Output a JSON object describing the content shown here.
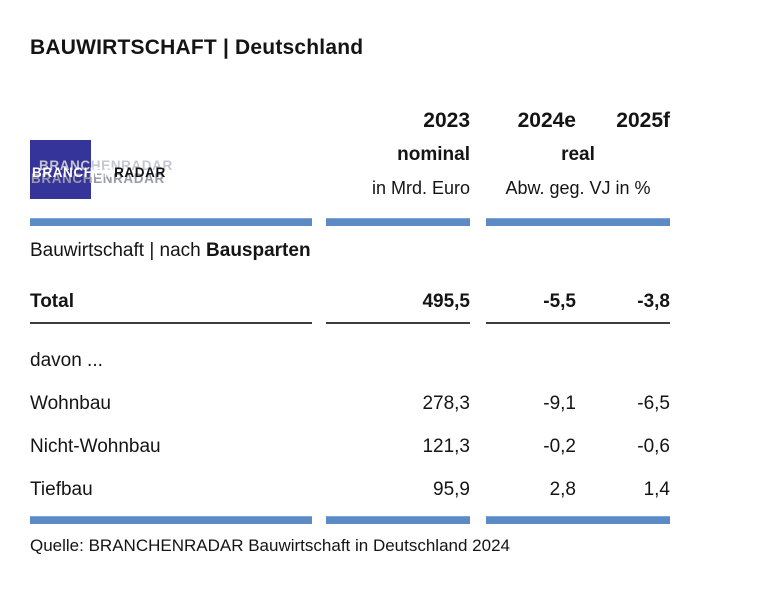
{
  "title": "BAUWIRTSCHAFT | Deutschland",
  "logo": {
    "part1": "BRANCHEN",
    "part2": "RADAR",
    "ghost_text": "BRANCHENRADAR"
  },
  "header": {
    "year_2023": "2023",
    "year_2024": "2024e",
    "year_2025": "2025f",
    "scale_2023": "nominal",
    "scale_right": "real",
    "unit_2023": "in Mrd. Euro",
    "unit_right": "Abw. geg. VJ in %"
  },
  "section": {
    "prefix": "Bauwirtschaft | nach ",
    "emphasis": "Bausparten"
  },
  "table": {
    "total": {
      "label": "Total",
      "v2023": "495,5",
      "v2024": "-5,5",
      "v2025": "-3,8"
    },
    "davon_label": "davon ...",
    "rows": [
      {
        "label": "Wohnbau",
        "v2023": "278,3",
        "v2024": "-9,1",
        "v2025": "-6,5"
      },
      {
        "label": "Nicht-Wohnbau",
        "v2023": "121,3",
        "v2024": "-0,2",
        "v2025": "-0,6"
      },
      {
        "label": "Tiefbau",
        "v2023": "95,9",
        "v2024": "2,8",
        "v2025": "1,4"
      }
    ]
  },
  "source": "Quelle: BRANCHENRADAR Bauwirtschaft in Deutschland 2024",
  "colors": {
    "bar_blue": "#5b8ac4",
    "logo_blue": "#35349b",
    "rule_dark": "#3d3d3d"
  },
  "chart_data": {
    "type": "table",
    "title": "BAUWIRTSCHAFT | Deutschland",
    "section": "Bauwirtschaft | nach Bausparten",
    "columns": [
      "Bausparte",
      "2023 nominal in Mrd. Euro",
      "2024e real Abw. geg. VJ in %",
      "2025f real Abw. geg. VJ in %"
    ],
    "rows": [
      [
        "Total",
        495.5,
        -5.5,
        -3.8
      ],
      [
        "Wohnbau",
        278.3,
        -9.1,
        -6.5
      ],
      [
        "Nicht-Wohnbau",
        121.3,
        -0.2,
        -0.6
      ],
      [
        "Tiefbau",
        95.9,
        2.8,
        1.4
      ]
    ],
    "source": "Quelle: BRANCHENRADAR Bauwirtschaft in Deutschland 2024"
  }
}
